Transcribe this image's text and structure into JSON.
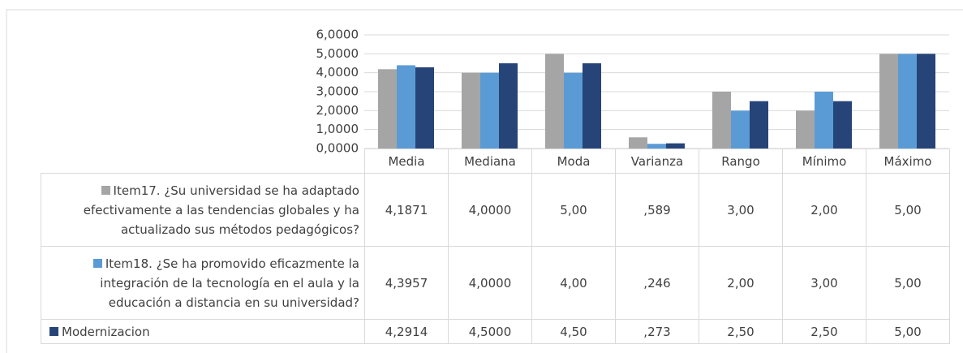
{
  "chart_data": {
    "type": "bar",
    "categories": [
      "Media",
      "Mediana",
      "Moda",
      "Varianza",
      "Rango",
      "Mínimo",
      "Máximo"
    ],
    "series": [
      {
        "name": "Item17. ¿Su universidad se ha adaptado efectivamente a las tendencias globales y ha actualizado sus métodos pedagógicos?",
        "color": "#a5a5a5",
        "values": [
          4.1871,
          4.0,
          5.0,
          0.589,
          3.0,
          2.0,
          5.0
        ],
        "value_labels": [
          "4,1871",
          "4,0000",
          "5,00",
          ",589",
          "3,00",
          "2,00",
          "5,00"
        ]
      },
      {
        "name": "Item18. ¿Se ha promovido eficazmente la integración de la tecnología en el aula y la educación a distancia en su universidad?",
        "color": "#5b9bd5",
        "values": [
          4.3957,
          4.0,
          4.0,
          0.246,
          2.0,
          3.0,
          5.0
        ],
        "value_labels": [
          "4,3957",
          "4,0000",
          "4,00",
          ",246",
          "2,00",
          "3,00",
          "5,00"
        ]
      },
      {
        "name": "Modernizacion",
        "color": "#264478",
        "values": [
          4.2914,
          4.5,
          4.5,
          0.273,
          2.5,
          2.5,
          5.0
        ],
        "value_labels": [
          "4,2914",
          "4,5000",
          "4,50",
          ",273",
          "2,50",
          "2,50",
          "5,00"
        ]
      }
    ],
    "ylim": [
      0,
      6
    ],
    "yticks": [
      {
        "value": 0,
        "label": "0,0000"
      },
      {
        "value": 1,
        "label": "1,0000"
      },
      {
        "value": 2,
        "label": "2,0000"
      },
      {
        "value": 3,
        "label": "3,0000"
      },
      {
        "value": 4,
        "label": "4,0000"
      },
      {
        "value": 5,
        "label": "5,0000"
      },
      {
        "value": 6,
        "label": "6,0000"
      }
    ],
    "grid": true,
    "data_table": true
  }
}
